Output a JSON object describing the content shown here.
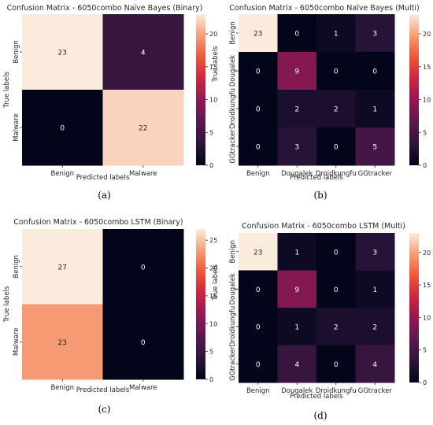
{
  "chart_data": [
    {
      "type": "heatmap",
      "title": "Confusion Matrix - 6050combo Naïve Bayes (Binary)",
      "caption": "(a)",
      "xlabel": "Predicted labels",
      "ylabel": "True labels",
      "x_categories": [
        "Benign",
        "Malware"
      ],
      "y_categories": [
        "Benign",
        "Malware"
      ],
      "values": [
        [
          23,
          4
        ],
        [
          0,
          22
        ]
      ],
      "colorbar": {
        "min": 0,
        "max": 23,
        "ticks": [
          0,
          5,
          10,
          15,
          20
        ]
      }
    },
    {
      "type": "heatmap",
      "title": "Confusion Matrix - 6050combo Naïve Bayes (Multi)",
      "caption": "(b)",
      "xlabel": "Predicted labels",
      "ylabel": "True labels",
      "x_categories": [
        "Benign",
        "Dougalek",
        "Droidkungfu",
        "GGtracker"
      ],
      "y_categories": [
        "Benign",
        "Dougalek",
        "Droidkungfu",
        "GGtracker"
      ],
      "values": [
        [
          23,
          0,
          1,
          3
        ],
        [
          0,
          9,
          0,
          0
        ],
        [
          0,
          2,
          2,
          1
        ],
        [
          0,
          3,
          0,
          5
        ]
      ],
      "colorbar": {
        "min": 0,
        "max": 23,
        "ticks": [
          0,
          5,
          10,
          15,
          20
        ]
      }
    },
    {
      "type": "heatmap",
      "title": "Confusion Matrix - 6050combo LSTM (Binary)",
      "caption": "(c)",
      "xlabel": "Predicted labels",
      "ylabel": "True labels",
      "x_categories": [
        "Benign",
        "Malware"
      ],
      "y_categories": [
        "Benign",
        "Malware"
      ],
      "values": [
        [
          27,
          0
        ],
        [
          23,
          0
        ]
      ],
      "colorbar": {
        "min": 0,
        "max": 27,
        "ticks": [
          0,
          5,
          10,
          15,
          20,
          25
        ]
      }
    },
    {
      "type": "heatmap",
      "title": "Confusion Matrix - 6050combo LSTM (Multi)",
      "caption": "(d)",
      "xlabel": "Predicted labels",
      "ylabel": "True labels",
      "x_categories": [
        "Benign",
        "Dougalek",
        "Droidkungfu",
        "GGtracker"
      ],
      "y_categories": [
        "Benign",
        "Dougalek",
        "Droidkungfu",
        "GGtracker"
      ],
      "values": [
        [
          23,
          1,
          0,
          3
        ],
        [
          0,
          9,
          0,
          1
        ],
        [
          0,
          1,
          2,
          2
        ],
        [
          0,
          4,
          0,
          4
        ]
      ],
      "colorbar": {
        "min": 0,
        "max": 23,
        "ticks": [
          0,
          5,
          10,
          15,
          20
        ]
      }
    }
  ]
}
